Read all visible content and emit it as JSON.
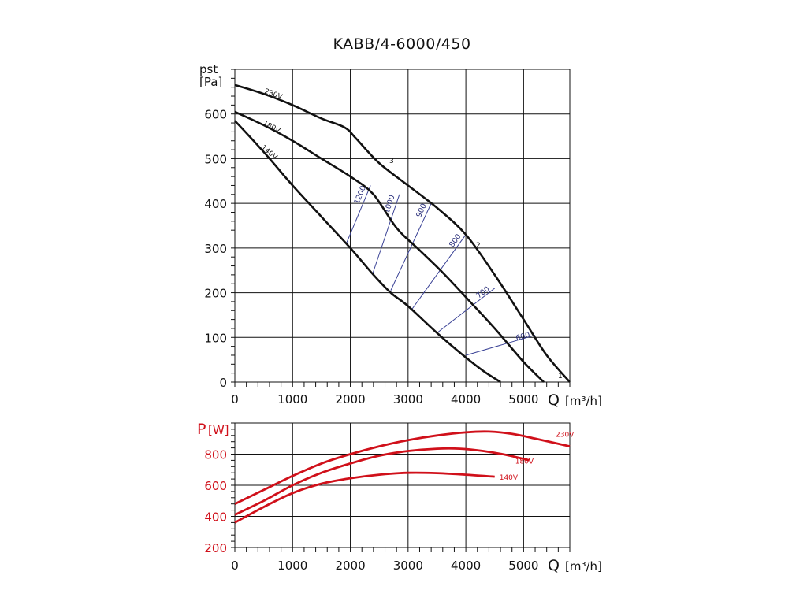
{
  "title": "KABB/4-6000/450",
  "chart_data": [
    {
      "type": "line",
      "title": "KABB/4-6000/450",
      "ylabel_line1": "pst",
      "ylabel_line2": "[Pa]",
      "xlabel": "Q [m³/h]",
      "xlabel_main": "Q",
      "xlabel_unit": "[m³/h]",
      "xlim": [
        0,
        5800
      ],
      "ylim": [
        0,
        700
      ],
      "x_ticks": [
        0,
        1000,
        2000,
        3000,
        4000,
        5000
      ],
      "x_tick_labels": [
        "0",
        "1000",
        "2000",
        "3000",
        "4000",
        "5000"
      ],
      "y_ticks": [
        0,
        100,
        200,
        300,
        400,
        500,
        600
      ],
      "y_tick_labels": [
        "0",
        "100",
        "200",
        "300",
        "400",
        "500",
        "600"
      ],
      "grid": true,
      "series": [
        {
          "name": "230V",
          "x": [
            0,
            500,
            1000,
            1500,
            1900,
            2100,
            2500,
            3000,
            3500,
            4000,
            4500,
            5000,
            5400,
            5800
          ],
          "y": [
            665,
            645,
            620,
            590,
            570,
            545,
            490,
            440,
            390,
            330,
            240,
            140,
            60,
            0
          ]
        },
        {
          "name": "180V",
          "x": [
            0,
            500,
            1000,
            1500,
            2000,
            2400,
            2800,
            3200,
            3600,
            4000,
            4500,
            5000,
            5350
          ],
          "y": [
            605,
            575,
            540,
            500,
            460,
            420,
            345,
            295,
            245,
            190,
            120,
            45,
            0
          ]
        },
        {
          "name": "140V",
          "x": [
            0,
            500,
            1000,
            1500,
            2000,
            2400,
            2700,
            3000,
            3500,
            4000,
            4300,
            4600
          ],
          "y": [
            585,
            515,
            440,
            370,
            300,
            240,
            200,
            170,
            110,
            55,
            25,
            0
          ]
        }
      ],
      "curve_labels": [
        "230V",
        "180V",
        "140V"
      ],
      "point_labels": [
        "1",
        "2",
        "3"
      ],
      "rpm_lines": [
        {
          "label": "1200",
          "x": [
            1930,
            2350
          ],
          "y": [
            310,
            440
          ]
        },
        {
          "label": "1000",
          "x": [
            2380,
            2850
          ],
          "y": [
            240,
            420
          ]
        },
        {
          "label": "900",
          "x": [
            2700,
            3400
          ],
          "y": [
            205,
            400
          ]
        },
        {
          "label": "800",
          "x": [
            3050,
            4000
          ],
          "y": [
            160,
            330
          ]
        },
        {
          "label": "700",
          "x": [
            3500,
            4500
          ],
          "y": [
            110,
            210
          ]
        },
        {
          "label": "600",
          "x": [
            4000,
            5200
          ],
          "y": [
            60,
            105
          ]
        }
      ]
    },
    {
      "type": "line",
      "ylabel": "P [W]",
      "ylabel_main": "P",
      "ylabel_unit": "[W]",
      "xlabel": "Q [m³/h]",
      "xlabel_main": "Q",
      "xlabel_unit": "[m³/h]",
      "xlim": [
        0,
        5800
      ],
      "ylim": [
        200,
        1000
      ],
      "x_ticks": [
        0,
        1000,
        2000,
        3000,
        4000,
        5000
      ],
      "x_tick_labels": [
        "0",
        "1000",
        "2000",
        "3000",
        "4000",
        "5000"
      ],
      "y_ticks": [
        200,
        400,
        600,
        800
      ],
      "y_tick_labels": [
        "200",
        "400",
        "600",
        "800"
      ],
      "grid": true,
      "color": "#d0101a",
      "series": [
        {
          "name": "230V",
          "x": [
            0,
            500,
            1000,
            1500,
            2000,
            2500,
            3000,
            3500,
            4000,
            4400,
            4800,
            5200,
            5800
          ],
          "y": [
            480,
            570,
            660,
            740,
            800,
            850,
            890,
            920,
            940,
            945,
            930,
            900,
            850
          ]
        },
        {
          "name": "180V",
          "x": [
            0,
            500,
            1000,
            1500,
            2000,
            2500,
            3000,
            3500,
            3900,
            4300,
            4700,
            5100
          ],
          "y": [
            410,
            500,
            600,
            680,
            740,
            790,
            820,
            835,
            835,
            820,
            795,
            760
          ]
        },
        {
          "name": "140V",
          "x": [
            0,
            500,
            1000,
            1500,
            2000,
            2500,
            3000,
            3500,
            4000,
            4500
          ],
          "y": [
            360,
            460,
            550,
            610,
            645,
            668,
            680,
            678,
            668,
            655
          ]
        }
      ]
    }
  ]
}
